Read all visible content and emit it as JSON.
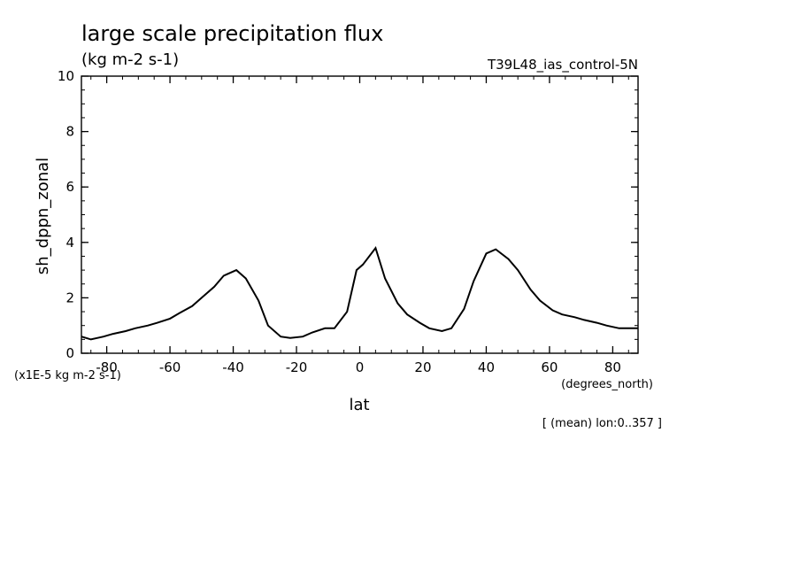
{
  "header": {
    "title": "large scale precipitation flux",
    "units": "(kg m-2 s-1)",
    "run_name": "T39L48_ias_control-5N"
  },
  "footer": {
    "scale_note": "(x1E-5 kg m-2 s-1)",
    "x_units": "(degrees_north)",
    "mean_note": "[ (mean) lon:0..357 ]"
  },
  "chart_data": {
    "type": "line",
    "title": "large scale precipitation flux",
    "subtitle": "(kg m-2 s-1)",
    "xlabel": "lat",
    "ylabel": "sh_dppn_zonal",
    "xlim": [
      -88,
      88
    ],
    "ylim": [
      0,
      10
    ],
    "x_ticks": [
      -80,
      -60,
      -40,
      -20,
      0,
      20,
      40,
      60,
      80
    ],
    "y_ticks": [
      0,
      2,
      4,
      6,
      8,
      10
    ],
    "x_tick_labels": [
      "-80",
      "-60",
      "-40",
      "-20",
      "0",
      "20",
      "40",
      "60",
      "80"
    ],
    "y_tick_labels": [
      "0",
      "2",
      "4",
      "6",
      "8",
      "10"
    ],
    "grid": false,
    "series": [
      {
        "x": [
          -88,
          -85,
          -81,
          -78,
          -74,
          -71,
          -67,
          -64,
          -60,
          -57,
          -53,
          -50,
          -46,
          -43,
          -39,
          -36,
          -32,
          -29,
          -25,
          -22,
          -18,
          -15,
          -11,
          -8,
          -4,
          -1,
          1,
          5,
          8,
          12,
          15,
          19,
          22,
          26,
          29,
          33,
          36,
          40,
          43,
          47,
          50,
          54,
          57,
          61,
          64,
          68,
          71,
          75,
          78,
          82,
          85,
          88
        ],
        "y": [
          0.6,
          0.5,
          0.6,
          0.7,
          0.8,
          0.9,
          1.0,
          1.1,
          1.25,
          1.45,
          1.7,
          2.0,
          2.4,
          2.8,
          3.0,
          2.7,
          1.9,
          1.0,
          0.6,
          0.55,
          0.6,
          0.75,
          0.9,
          0.9,
          1.5,
          3.0,
          3.2,
          3.8,
          2.7,
          1.8,
          1.4,
          1.1,
          0.9,
          0.8,
          0.9,
          1.6,
          2.6,
          3.6,
          3.75,
          3.4,
          3.0,
          2.3,
          1.9,
          1.55,
          1.4,
          1.3,
          1.2,
          1.1,
          1.0,
          0.9,
          0.9,
          0.9
        ]
      }
    ]
  }
}
